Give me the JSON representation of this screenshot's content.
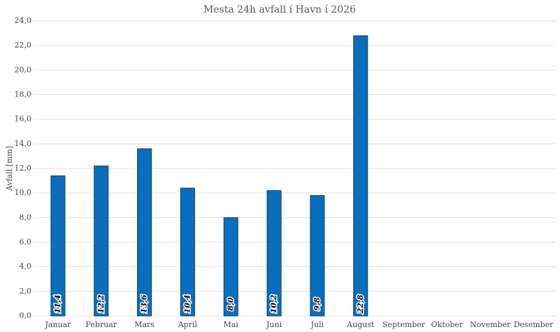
{
  "chart_data": {
    "type": "bar",
    "title": "Mesta 24h avfall í Havn í 2026",
    "y_label": "Avfall [mm]",
    "categories": [
      "Januar",
      "Februar",
      "Mars",
      "April",
      "Mai",
      "Juni",
      "Juli",
      "August",
      "September",
      "Oktober",
      "November",
      "Desember"
    ],
    "values": [
      11.4,
      12.2,
      13.6,
      10.4,
      8.0,
      10.2,
      9.8,
      22.8,
      null,
      null,
      null,
      null
    ],
    "value_labels": [
      "11,4",
      "12,2",
      "13,6",
      "10,4",
      "8,0",
      "10,2",
      "9,8",
      "22,8",
      null,
      null,
      null,
      null
    ],
    "color": "#0a6ebd",
    "ylim": [
      0,
      24
    ],
    "yticks": [
      {
        "value": 0,
        "label": "0,0"
      },
      {
        "value": 2,
        "label": "2,0"
      },
      {
        "value": 4,
        "label": "4,0"
      },
      {
        "value": 6,
        "label": "6,0"
      },
      {
        "value": 8,
        "label": "8,0"
      },
      {
        "value": 10,
        "label": "10,0"
      },
      {
        "value": 12,
        "label": "12,0"
      },
      {
        "value": 14,
        "label": "14,0"
      },
      {
        "value": 16,
        "label": "16,0"
      },
      {
        "value": 18,
        "label": "18,0"
      },
      {
        "value": 20,
        "label": "20,0"
      },
      {
        "value": 22,
        "label": "22,0"
      },
      {
        "value": 24,
        "label": "24,0"
      }
    ],
    "grid": true
  }
}
